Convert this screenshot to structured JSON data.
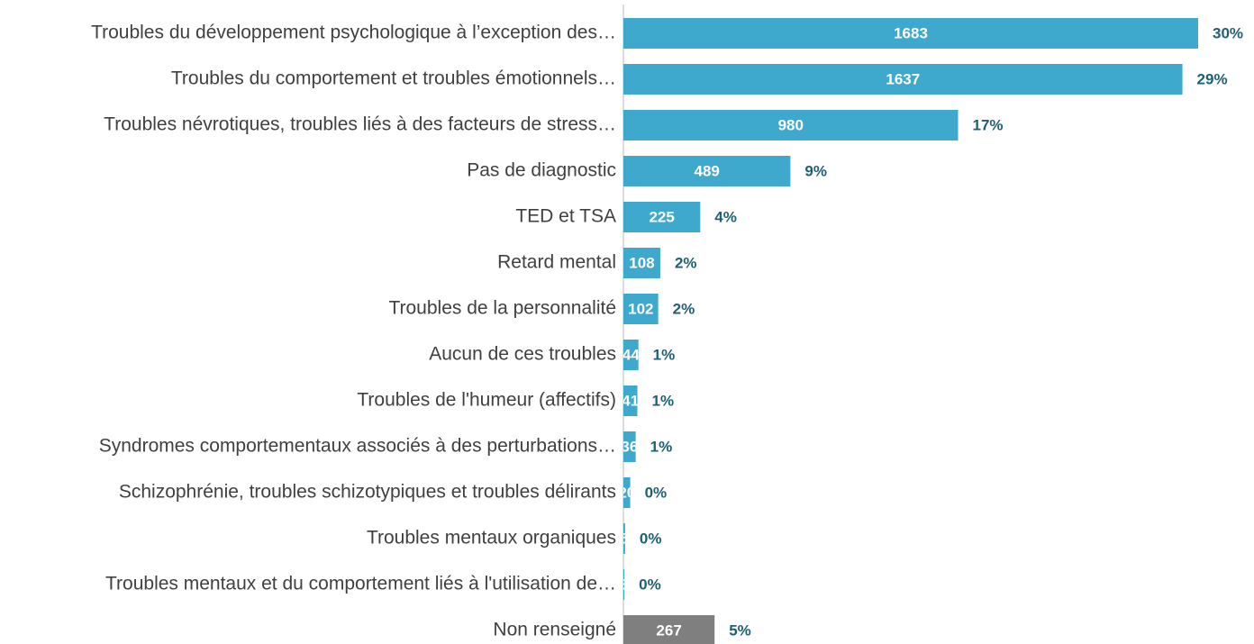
{
  "chart_data": {
    "type": "hbar",
    "categories": [
      "Troubles du développement psychologique à l’exception des…",
      "Troubles du comportement et troubles émotionnels…",
      "Troubles névrotiques, troubles liés à des facteurs de stress…",
      "Pas de diagnostic",
      "TED et TSA",
      "Retard mental",
      "Troubles de la personnalité",
      "Aucun de ces troubles",
      "Troubles de l'humeur (affectifs)",
      "Syndromes comportementaux associés à des perturbations…",
      "Schizophrénie, troubles schizotypiques et troubles délirants",
      "Troubles mentaux organiques",
      "Troubles mentaux et du comportement liés à l'utilisation de…",
      "Non renseigné"
    ],
    "values": [
      1683,
      1637,
      980,
      489,
      225,
      108,
      102,
      44,
      41,
      36,
      20,
      5,
      3,
      267
    ],
    "percentages": [
      30,
      29,
      17,
      9,
      4,
      2,
      2,
      1,
      1,
      1,
      0,
      0,
      0,
      5
    ],
    "percentage_labels": [
      "30%",
      "29%",
      "17%",
      "9%",
      "4%",
      "2%",
      "2%",
      "1%",
      "1%",
      "1%",
      "0%",
      "0%",
      "0%",
      "5%"
    ],
    "colors": [
      "#3ea9cc",
      "#3ea9cc",
      "#3ea9cc",
      "#3ea9cc",
      "#3ea9cc",
      "#3ea9cc",
      "#3ea9cc",
      "#3ea9cc",
      "#3ea9cc",
      "#3ea9cc",
      "#3ea9cc",
      "#3ea9cc",
      "#3ea9cc",
      "#7f7f7f"
    ],
    "xlim": [
      0,
      1683
    ]
  }
}
